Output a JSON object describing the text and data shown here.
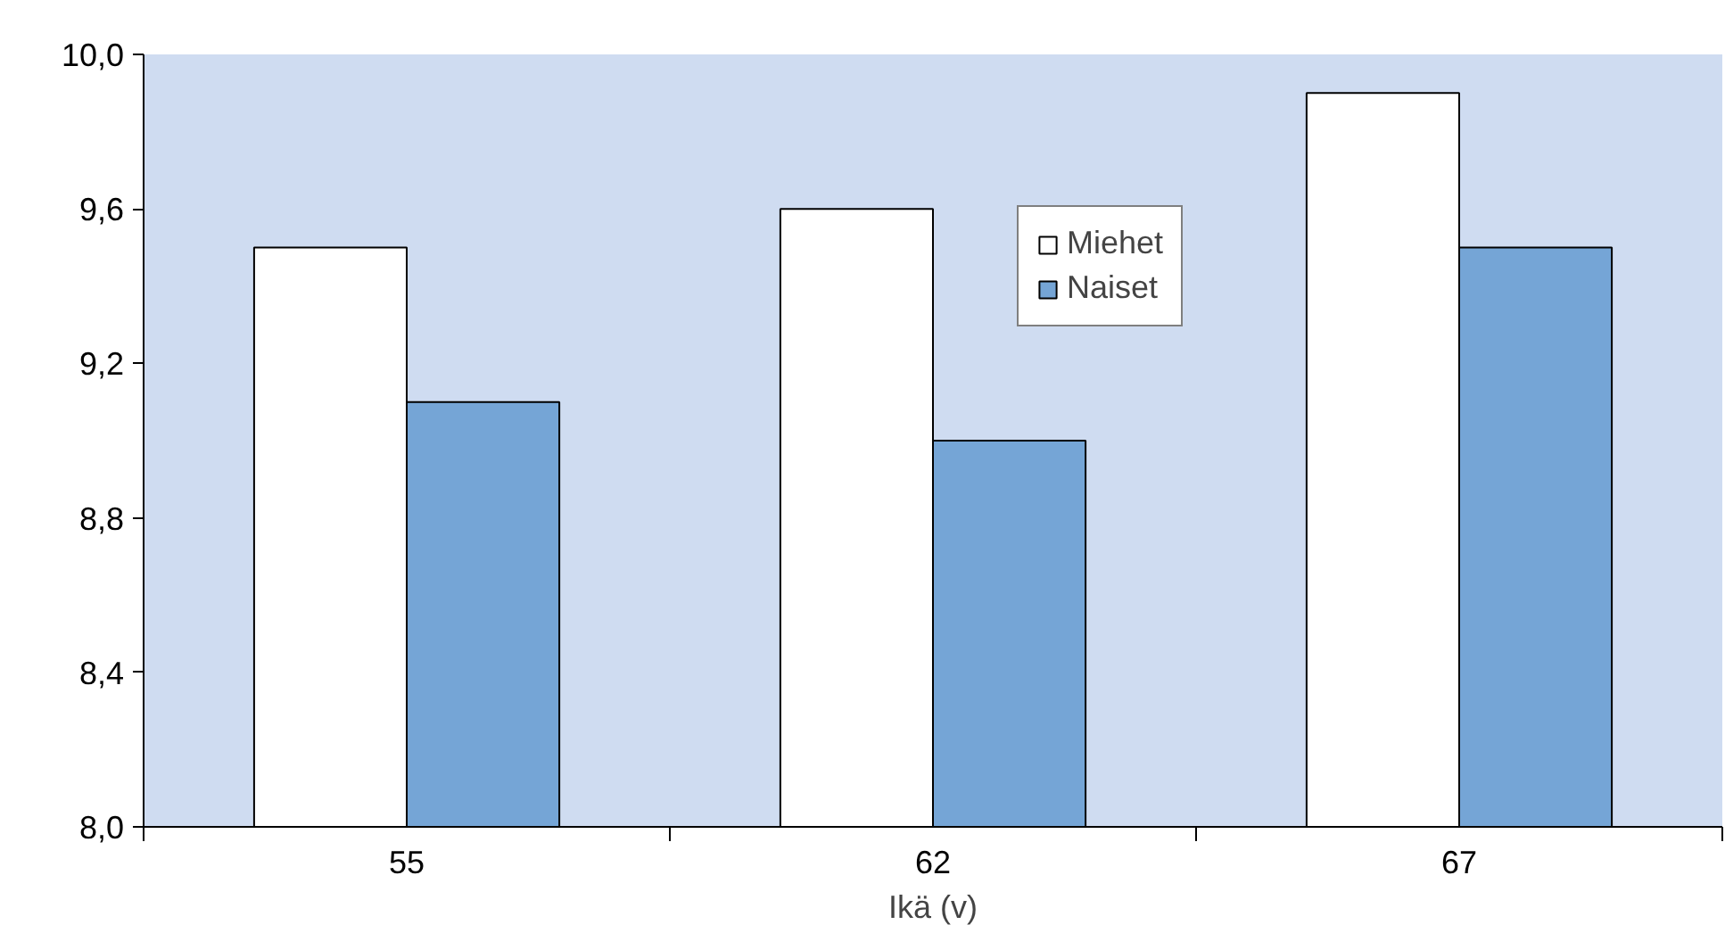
{
  "chart_data": {
    "type": "bar",
    "xlabel": "Ikä (v)",
    "categories": [
      "55",
      "62",
      "67"
    ],
    "series": [
      {
        "name": "Miehet",
        "color": "#ffffff",
        "values": [
          9.5,
          9.6,
          9.9
        ]
      },
      {
        "name": "Naiset",
        "color": "#75a5d6",
        "values": [
          9.1,
          9.0,
          9.5
        ]
      }
    ],
    "ylim": [
      8.0,
      10.0
    ],
    "yticks": [
      {
        "value": 8.0,
        "label": "8,0"
      },
      {
        "value": 8.4,
        "label": "8,4"
      },
      {
        "value": 8.8,
        "label": "8,8"
      },
      {
        "value": 9.2,
        "label": "9,2"
      },
      {
        "value": 9.6,
        "label": "9,6"
      },
      {
        "value": 10.0,
        "label": "10,0"
      }
    ],
    "grid": false,
    "legend": "top"
  }
}
